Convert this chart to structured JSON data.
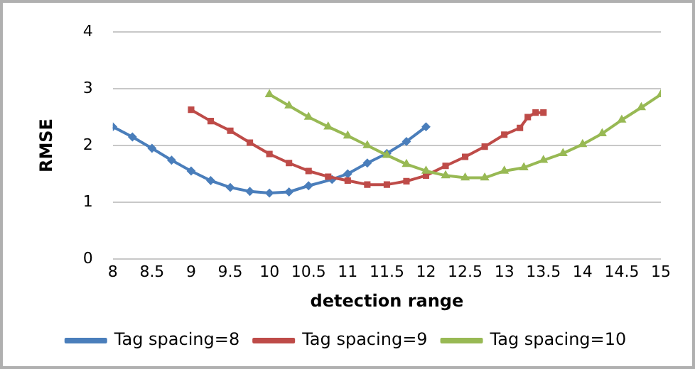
{
  "chart_data": {
    "type": "line",
    "xlabel": "detection range",
    "ylabel": "RMSE",
    "xlim": [
      8,
      15
    ],
    "xticks": [
      8,
      8.5,
      9,
      9.5,
      10,
      10.5,
      11,
      11.5,
      12,
      12.5,
      13,
      13.5,
      14,
      14.5,
      15
    ],
    "ylim": [
      0,
      4
    ],
    "yticks": [
      0,
      1,
      2,
      3,
      4
    ],
    "grid": "y",
    "legend": "bottom",
    "series": [
      {
        "name": "Tag spacing=8",
        "color": "#4a7ebb",
        "marker": "diamond",
        "x": [
          8,
          8.25,
          8.5,
          8.75,
          9,
          9.25,
          9.5,
          9.75,
          10,
          10.25,
          10.5,
          10.8,
          11,
          11.25,
          11.5,
          11.75,
          12
        ],
        "values": [
          2.33,
          2.15,
          1.95,
          1.74,
          1.55,
          1.38,
          1.26,
          1.19,
          1.16,
          1.18,
          1.29,
          1.4,
          1.5,
          1.69,
          1.86,
          2.07,
          2.33
        ]
      },
      {
        "name": "Tag spacing=9",
        "color": "#be4b48",
        "marker": "square",
        "x": [
          9,
          9.25,
          9.5,
          9.75,
          10,
          10.25,
          10.5,
          10.75,
          11,
          11.25,
          11.5,
          11.75,
          12,
          12.25,
          12.5,
          12.75,
          13,
          13.2,
          13.3,
          13.4,
          13.5
        ],
        "values": [
          2.63,
          2.43,
          2.26,
          2.05,
          1.85,
          1.69,
          1.55,
          1.45,
          1.38,
          1.31,
          1.31,
          1.37,
          1.47,
          1.64,
          1.8,
          1.98,
          2.19,
          2.31,
          2.5,
          2.58,
          2.58
        ]
      },
      {
        "name": "Tag spacing=10",
        "color": "#98b954",
        "marker": "triangle",
        "x": [
          10,
          10.25,
          10.5,
          10.75,
          11,
          11.25,
          11.5,
          11.75,
          12,
          12.25,
          12.5,
          12.75,
          13,
          13.25,
          13.5,
          13.75,
          14,
          14.25,
          14.5,
          14.75,
          15
        ],
        "values": [
          2.9,
          2.7,
          2.5,
          2.33,
          2.17,
          2,
          1.83,
          1.67,
          1.55,
          1.47,
          1.43,
          1.43,
          1.55,
          1.61,
          1.74,
          1.86,
          2.02,
          2.21,
          2.45,
          2.67,
          2.9
        ]
      }
    ]
  }
}
